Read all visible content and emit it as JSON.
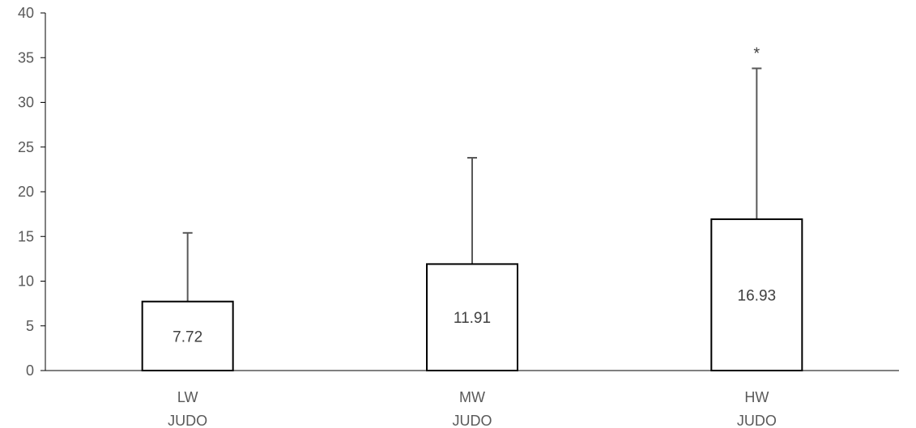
{
  "chart_data": {
    "type": "bar",
    "categories": [
      [
        "LW",
        "JUDO"
      ],
      [
        "MW",
        "JUDO"
      ],
      [
        "HW",
        "JUDO"
      ]
    ],
    "values": [
      7.72,
      11.91,
      16.93
    ],
    "data_labels": [
      "7.72",
      "11.91",
      "16.93"
    ],
    "error_upper": [
      15.4,
      23.8,
      33.8
    ],
    "significance_marks": [
      "",
      "",
      "*"
    ],
    "ylim": [
      0,
      40
    ],
    "yticks": [
      0,
      5,
      10,
      15,
      20,
      25,
      30,
      35,
      40
    ],
    "title": "",
    "xlabel": "",
    "ylabel": "",
    "grid": false,
    "legend": "none",
    "colors": {
      "bar_fill": "#ffffff",
      "bar_stroke": "#000000",
      "error_bar": "#595959",
      "axis": "#000000",
      "text": "#595959"
    }
  }
}
